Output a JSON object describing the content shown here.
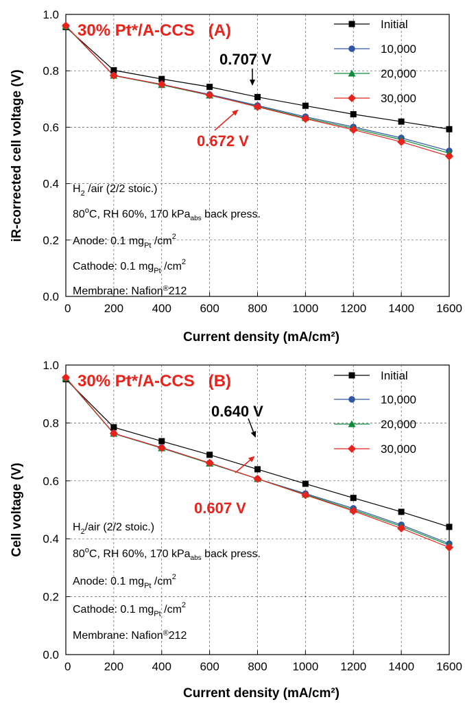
{
  "colors": {
    "initial": "#000000",
    "c10000": "#2f55a4",
    "c20000": "#0b8a3a",
    "c30000": "#e8231b",
    "red_text": "#e8231b"
  },
  "chart_data": [
    {
      "type": "line",
      "title": "30% Pt*/A-CCS   (A)",
      "xlabel": "Current density (mA/cm²)",
      "ylabel": "iR-corrected cell voltage (V)",
      "xlim": [
        0,
        1600
      ],
      "ylim": [
        0.0,
        1.0
      ],
      "x_ticks": [
        "0",
        "200",
        "400",
        "600",
        "800",
        "1000",
        "1200",
        "1400",
        "1600"
      ],
      "y_ticks": [
        "0.0",
        "0.2",
        "0.4",
        "0.6",
        "0.8",
        "1.0"
      ],
      "grid": true,
      "legend_position": "top-right",
      "x": [
        0,
        200,
        400,
        600,
        800,
        1000,
        1200,
        1400,
        1600
      ],
      "series": [
        {
          "name": "Initial",
          "marker": "square",
          "values": [
            0.955,
            0.802,
            0.771,
            0.743,
            0.707,
            0.676,
            0.646,
            0.62,
            0.593
          ]
        },
        {
          "name": "10,000",
          "marker": "circle",
          "values": [
            0.958,
            0.784,
            0.752,
            0.716,
            0.677,
            0.637,
            0.601,
            0.562,
            0.516
          ]
        },
        {
          "name": "20,000",
          "marker": "triangle",
          "values": [
            0.958,
            0.783,
            0.75,
            0.713,
            0.674,
            0.633,
            0.596,
            0.556,
            0.508
          ]
        },
        {
          "name": "30,000",
          "marker": "diamond",
          "values": [
            0.96,
            0.783,
            0.752,
            0.714,
            0.672,
            0.63,
            0.591,
            0.548,
            0.497
          ]
        }
      ],
      "annotations": {
        "upper_value": "0.707 V",
        "lower_value": "0.672 V"
      },
      "conditions": {
        "line1": "H2 /air (2/2 stoic.)",
        "line2": "80oC, RH 60%, 170 kPaabs back press.",
        "line3": "Anode: 0.1 mgPt /cm2",
        "line4": "Cathode: 0.1 mgPt /cm2",
        "line5": "Membrane: Nafion®212"
      }
    },
    {
      "type": "line",
      "title": "30% Pt*/A-CCS   (B)",
      "xlabel": "Current density (mA/cm²)",
      "ylabel": "Cell voltage (V)",
      "xlim": [
        0,
        1600
      ],
      "ylim": [
        0.0,
        1.0
      ],
      "x_ticks": [
        "0",
        "200",
        "400",
        "600",
        "800",
        "1000",
        "1200",
        "1400",
        "1600"
      ],
      "y_ticks": [
        "0.0",
        "0.2",
        "0.4",
        "0.6",
        "0.8",
        "1.0"
      ],
      "grid": true,
      "legend_position": "top-right",
      "x": [
        0,
        200,
        400,
        600,
        800,
        1000,
        1200,
        1400,
        1600
      ],
      "series": [
        {
          "name": "Initial",
          "marker": "square",
          "values": [
            0.951,
            0.785,
            0.737,
            0.69,
            0.64,
            0.59,
            0.541,
            0.493,
            0.441
          ]
        },
        {
          "name": "10,000",
          "marker": "circle",
          "values": [
            0.955,
            0.764,
            0.715,
            0.662,
            0.607,
            0.556,
            0.505,
            0.448,
            0.383
          ]
        },
        {
          "name": "20,000",
          "marker": "triangle",
          "values": [
            0.955,
            0.763,
            0.713,
            0.66,
            0.607,
            0.553,
            0.5,
            0.443,
            0.378
          ]
        },
        {
          "name": "30,000",
          "marker": "diamond",
          "values": [
            0.957,
            0.764,
            0.714,
            0.662,
            0.607,
            0.551,
            0.496,
            0.436,
            0.37
          ]
        }
      ],
      "annotations": {
        "upper_value": "0.640 V",
        "lower_value": "0.607 V"
      },
      "conditions": {
        "line1": "H2/air (2/2 stoic.)",
        "line2": "80oC, RH 60%, 170 kPaabs back press.",
        "line3": "Anode: 0.1 mgPt /cm2",
        "line4": "Cathode: 0.1 mgPt /cm2",
        "line5": "Membrane: Nafion®212"
      }
    }
  ]
}
